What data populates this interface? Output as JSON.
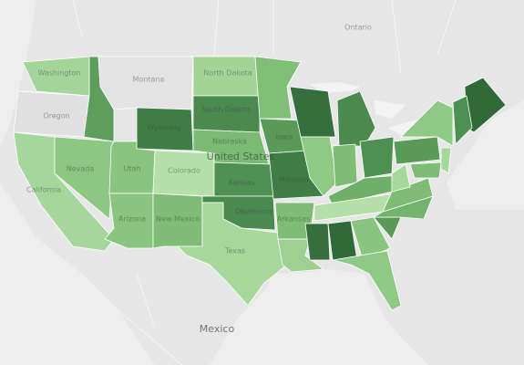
{
  "map": {
    "labels": [
      "Ontario",
      "Washington",
      "Montana",
      "North Dakota",
      "Oregon",
      "South Dakota",
      "Wyoming",
      "Nebraska",
      "Iowa",
      "United States",
      "Nevada",
      "Utah",
      "Colorado",
      "Kansas",
      "Missouri",
      "California",
      "Oklahoma",
      "Arizona",
      "New Mexico",
      "Arkansas",
      "Texas",
      "Mexico"
    ]
  }
}
